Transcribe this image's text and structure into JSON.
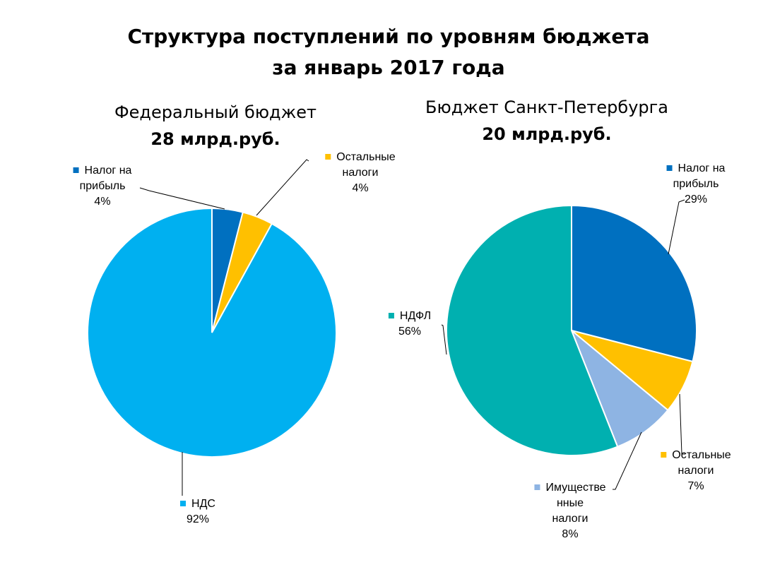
{
  "title_lines": [
    "Структура поступлений по уровням бюджета",
    "за январь 2017 года"
  ],
  "chart_data": [
    {
      "type": "pie",
      "title": "Федеральный бюджет",
      "subtitle": "28 млрд.руб.",
      "slices": [
        {
          "label": "Налог на прибыль",
          "label_lines": [
            "Налог на",
            "прибыль"
          ],
          "value": 4,
          "value_text": "4%",
          "color": "#0070C0"
        },
        {
          "label": "Остальные налоги",
          "label_lines": [
            "Остальные",
            "налоги"
          ],
          "value": 4,
          "value_text": "4%",
          "color": "#FFC000"
        },
        {
          "label": "НДС",
          "label_lines": [
            "НДС"
          ],
          "value": 92,
          "value_text": "92%",
          "color": "#00B0F0"
        }
      ]
    },
    {
      "type": "pie",
      "title": "Бюджет Санкт-Петербурга",
      "subtitle": "20 млрд.руб.",
      "slices": [
        {
          "label": "Налог на прибыль",
          "label_lines": [
            "Налог на",
            "прибыль"
          ],
          "value": 29,
          "value_text": "29%",
          "color": "#0070C0"
        },
        {
          "label": "Остальные налоги",
          "label_lines": [
            "Остальные",
            "налоги"
          ],
          "value": 7,
          "value_text": "7%",
          "color": "#FFC000"
        },
        {
          "label": "Имущественные налоги",
          "label_lines": [
            "Имуществе",
            "нные",
            "налоги"
          ],
          "value": 8,
          "value_text": "8%",
          "color": "#8EB4E3"
        },
        {
          "label": "НДФЛ",
          "label_lines": [
            "НДФЛ"
          ],
          "value": 56,
          "value_text": "56%",
          "color": "#00B0B0"
        }
      ]
    }
  ]
}
